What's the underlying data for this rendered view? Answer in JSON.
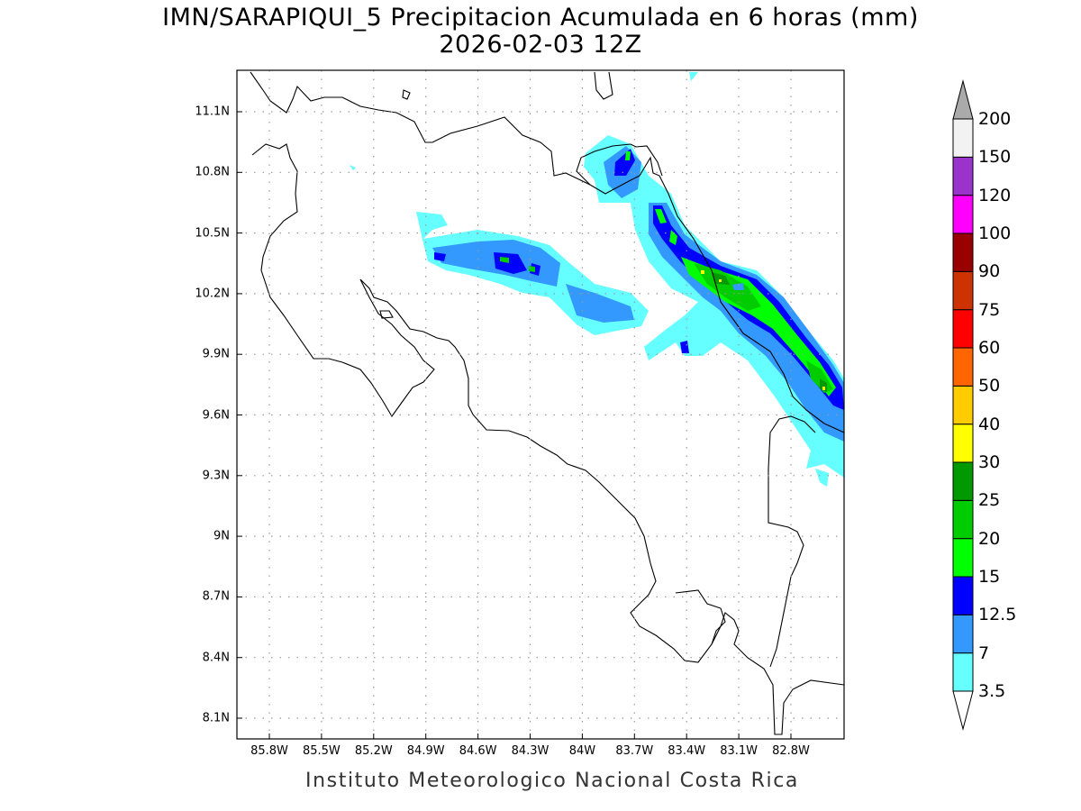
{
  "title": "IMN/SARAPIQUI_5 Precipitacion Acumulada en 6 horas (mm)",
  "subtitle": "2026-02-03 12Z",
  "credit": "Instituto Meteorologico Nacional Costa Rica",
  "map": {
    "lat_range": [
      8.0,
      11.3
    ],
    "lon_range": [
      -86.0,
      -82.5
    ],
    "lat_ticks": [
      "11.1N",
      "10.8N",
      "10.5N",
      "10.2N",
      "9.9N",
      "9.6N",
      "9.3N",
      "9N",
      "8.7N",
      "8.4N",
      "8.1N"
    ],
    "lon_ticks": [
      "85.8W",
      "85.5W",
      "85.2W",
      "84.9W",
      "84.6W",
      "84.3W",
      "84W",
      "83.7W",
      "83.4W",
      "83.1W",
      "82.8W"
    ],
    "grid": "dotted"
  },
  "colorbar": {
    "levels": [
      "3.5",
      "7",
      "12.5",
      "15",
      "20",
      "25",
      "30",
      "40",
      "50",
      "60",
      "75",
      "90",
      "100",
      "120",
      "150",
      "200"
    ],
    "colors": [
      "#66ffff",
      "#3399ff",
      "#0000ff",
      "#00ff00",
      "#00cc00",
      "#009900",
      "#ffff00",
      "#ffcc00",
      "#ff6600",
      "#ff0000",
      "#cc3300",
      "#990000",
      "#ff00ff",
      "#9933cc",
      "#f2f2f2"
    ],
    "over_color": "#aaaaaa",
    "under_color": "#ffffff"
  }
}
